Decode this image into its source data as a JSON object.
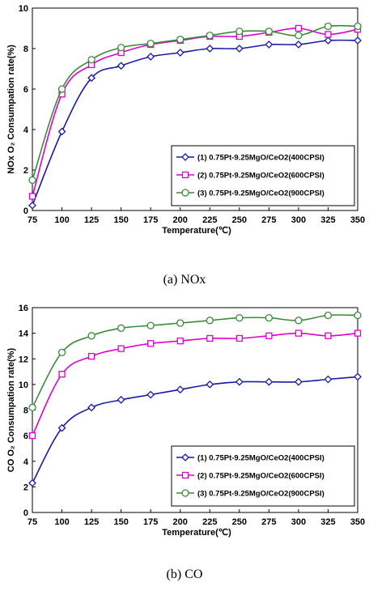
{
  "chart_data": [
    {
      "type": "line",
      "xlabel": "Temperature(℃)",
      "ylabel": "NOx O₂ Consumpation rate(%)",
      "xlim": [
        75,
        350
      ],
      "ylim": [
        0,
        10
      ],
      "x_ticks": [
        "75",
        "100",
        "125",
        "150",
        "175",
        "200",
        "225",
        "250",
        "275",
        "300",
        "325",
        "350"
      ],
      "y_ticks": [
        "0",
        "2",
        "4",
        "6",
        "8",
        "10"
      ],
      "x": [
        75,
        100,
        125,
        150,
        175,
        200,
        225,
        250,
        275,
        300,
        325,
        350
      ],
      "series": [
        {
          "name": "(1) 0.75Pt-9.25MgO/CeO2(400CPSI)",
          "color": "#1a1aa8",
          "marker": "diamond",
          "values": [
            0.25,
            3.9,
            6.55,
            7.15,
            7.6,
            7.8,
            8.0,
            8.0,
            8.2,
            8.2,
            8.4,
            8.4
          ]
        },
        {
          "name": "(2) 0.75Pt-9.25MgO/CeO2(600CPSI)",
          "color": "#e000d0",
          "marker": "square",
          "values": [
            0.7,
            5.75,
            7.2,
            7.8,
            8.2,
            8.4,
            8.6,
            8.6,
            8.8,
            9.0,
            8.7,
            8.95
          ]
        },
        {
          "name": "(3) 0.75Pt-9.25MgO/CeO2(900CPSI)",
          "color": "#3a8a3a",
          "marker": "circle",
          "values": [
            1.5,
            6.0,
            7.45,
            8.05,
            8.25,
            8.45,
            8.65,
            8.85,
            8.85,
            8.65,
            9.1,
            9.1
          ]
        }
      ],
      "legend": "bottom-right",
      "caption": "(a)  NOx"
    },
    {
      "type": "line",
      "xlabel": "Temperature(℃)",
      "ylabel": "CO O₂ Consumpation rate(%)",
      "xlim": [
        75,
        350
      ],
      "ylim": [
        0,
        16
      ],
      "x_ticks": [
        "75",
        "100",
        "125",
        "150",
        "175",
        "200",
        "225",
        "250",
        "275",
        "300",
        "325",
        "350"
      ],
      "y_ticks": [
        "0",
        "2",
        "4",
        "6",
        "8",
        "10",
        "12",
        "14",
        "16"
      ],
      "x": [
        75,
        100,
        125,
        150,
        175,
        200,
        225,
        250,
        275,
        300,
        325,
        350
      ],
      "series": [
        {
          "name": "(1) 0.75Pt-9.25MgO/CeO2(400CPSI)",
          "color": "#1a1aa8",
          "marker": "diamond",
          "values": [
            2.3,
            6.6,
            8.2,
            8.8,
            9.2,
            9.6,
            10.0,
            10.2,
            10.2,
            10.2,
            10.4,
            10.6
          ]
        },
        {
          "name": "(2) 0.75Pt-9.25MgO/CeO2(600CPSI)",
          "color": "#e000d0",
          "marker": "square",
          "values": [
            6.0,
            10.8,
            12.2,
            12.8,
            13.2,
            13.4,
            13.6,
            13.6,
            13.8,
            14.0,
            13.8,
            14.0
          ]
        },
        {
          "name": "(3) 0.75Pt-9.25MgO/CeO2(900CPSI)",
          "color": "#3a8a3a",
          "marker": "circle",
          "values": [
            8.2,
            12.5,
            13.8,
            14.4,
            14.6,
            14.8,
            15.0,
            15.2,
            15.2,
            15.0,
            15.4,
            15.4
          ]
        }
      ],
      "legend": "bottom-right",
      "caption": "(b)  CO"
    }
  ]
}
